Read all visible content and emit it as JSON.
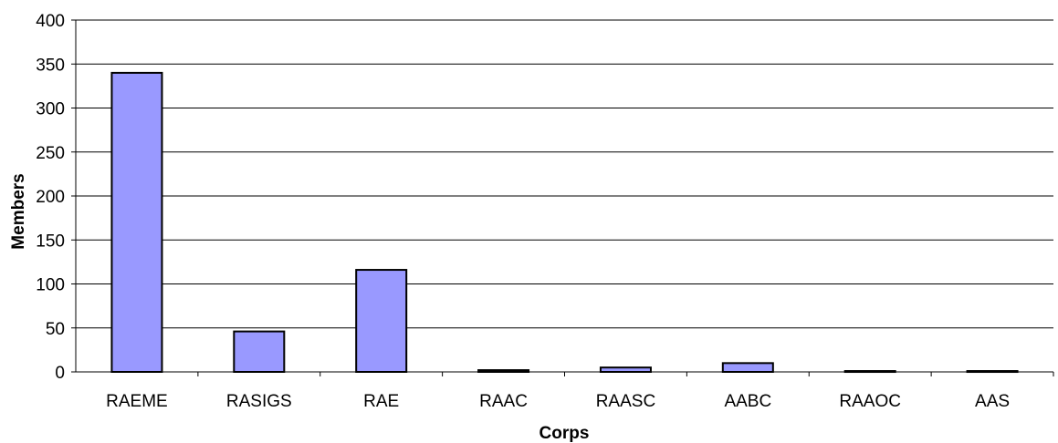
{
  "chart_data": {
    "type": "bar",
    "title": "",
    "xlabel": "Corps",
    "ylabel": "Members",
    "categories": [
      "RAEME",
      "RASIGS",
      "RAE",
      "RAAC",
      "RAASC",
      "AABC",
      "RAAOC",
      "AAS"
    ],
    "values": [
      340,
      46,
      116,
      2,
      5,
      10,
      1,
      1
    ],
    "ylim": [
      0,
      400
    ],
    "yticks": [
      0,
      50,
      100,
      150,
      200,
      250,
      300,
      350,
      400
    ],
    "grid": true,
    "legend": "none",
    "bar_color": "#9999ff"
  }
}
